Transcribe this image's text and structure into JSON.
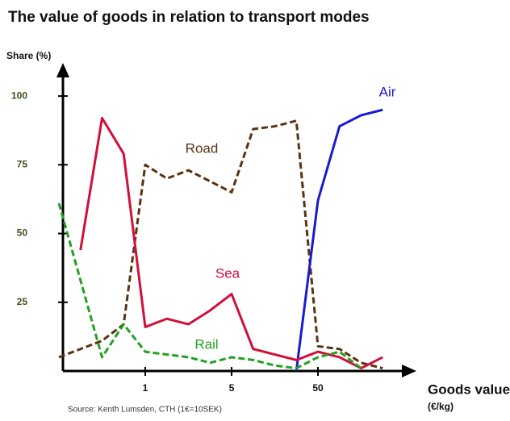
{
  "chart_data": {
    "type": "line",
    "title": "The value of goods in relation to transport modes",
    "y_label": "Share (%)",
    "x_label": "Goods value",
    "x_unit": "(€/kg)",
    "source": "Source: Kenth Lumsden, CTH (1€=10SEK)",
    "categories": [
      null,
      null,
      null,
      null,
      "1",
      null,
      null,
      null,
      "5",
      null,
      null,
      null,
      "50",
      null,
      null,
      null
    ],
    "ylim": [
      0,
      110
    ],
    "yticks": [
      25,
      50,
      75,
      100
    ],
    "series": [
      {
        "name": "Road",
        "color": "#5a3310",
        "dashed": true,
        "values": [
          5,
          8,
          11,
          17,
          75,
          70,
          73,
          69,
          65,
          88,
          89,
          91,
          9,
          8,
          3,
          1
        ]
      },
      {
        "name": "Air",
        "color": "#1a1acc",
        "dashed": false,
        "values": [
          null,
          null,
          null,
          null,
          null,
          null,
          null,
          null,
          null,
          null,
          null,
          0,
          62,
          89,
          93,
          95
        ]
      },
      {
        "name": "Sea",
        "color": "#d0103a",
        "dashed": false,
        "values": [
          null,
          44,
          92,
          79,
          16,
          19,
          17,
          22,
          28,
          8,
          6,
          4,
          7,
          5,
          1,
          5
        ]
      },
      {
        "name": "Rail",
        "color": "#22a022",
        "dashed": true,
        "values": [
          61,
          33,
          5,
          17,
          7,
          6,
          5,
          3,
          5,
          4,
          2,
          1,
          5,
          7,
          1,
          null
        ]
      }
    ]
  }
}
